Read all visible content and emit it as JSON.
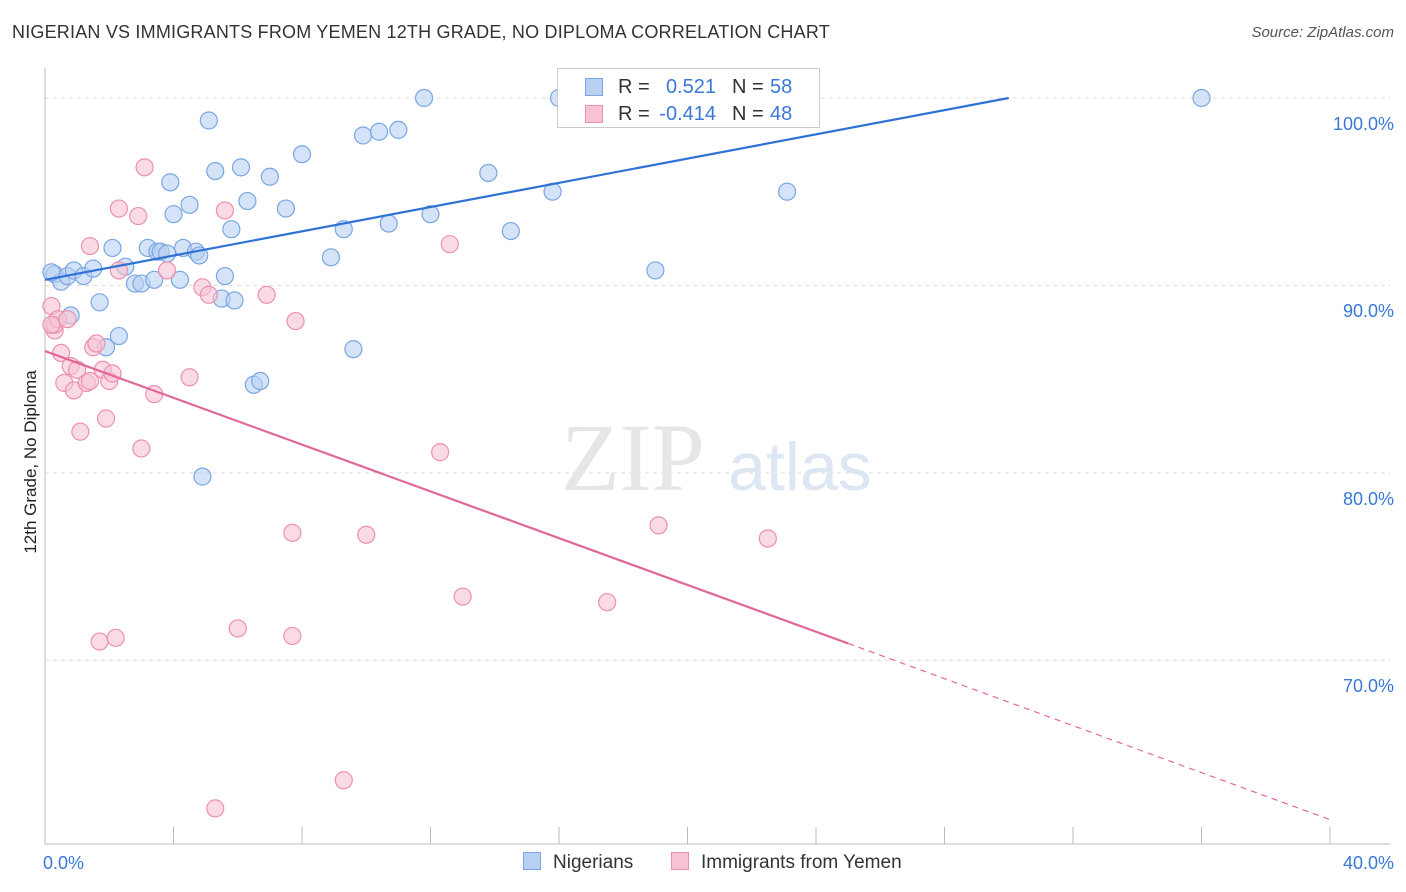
{
  "title": "NIGERIAN VS IMMIGRANTS FROM YEMEN 12TH GRADE, NO DIPLOMA CORRELATION CHART",
  "source": "Source: ZipAtlas.com",
  "watermark": {
    "zip": "ZIP",
    "atlas": "atlas"
  },
  "legend_top": {
    "rows": [
      {
        "r_label": "R =",
        "r_value": "0.521",
        "n_label": "N =",
        "n_value": "58",
        "fill": "#b8d0f2",
        "stroke": "#7aa6e3"
      },
      {
        "r_label": "R =",
        "r_value": "-0.414",
        "n_label": "N =",
        "n_value": "48",
        "fill": "#f7c3d3",
        "stroke": "#ec91ad"
      }
    ]
  },
  "legend_bottom": [
    {
      "label": "Nigerians",
      "fill": "#b8d0f2",
      "stroke": "#7aa6e3"
    },
    {
      "label": "Immigrants from Yemen",
      "fill": "#f7c3d3",
      "stroke": "#ec91ad"
    }
  ],
  "colors": {
    "blue_line": "#2f72d6",
    "pink_line": "#e0679a",
    "grid": "#dddddd",
    "axis_text": "#3a78d8"
  },
  "chart_data": {
    "type": "scatter",
    "title": "NIGERIAN VS IMMIGRANTS FROM YEMEN 12TH GRADE, NO DIPLOMA CORRELATION CHART",
    "xlabel": "",
    "ylabel": "12th Grade, No Diploma",
    "xlim": [
      0,
      40
    ],
    "ylim": [
      60.2,
      101.6
    ],
    "x_tick_labels": [
      "0.0%",
      "40.0%"
    ],
    "y_ticks": [
      {
        "value": 100,
        "label": "100.0%"
      },
      {
        "value": 90,
        "label": "90.0%"
      },
      {
        "value": 80,
        "label": "80.0%"
      },
      {
        "value": 70,
        "label": "70.0%"
      }
    ],
    "grid": true,
    "series": [
      {
        "name": "Nigerians",
        "color": "#b8d0f2",
        "edge": "#7aa6e3",
        "trend": {
          "x0": 0,
          "y0": 90.3,
          "x1": 30,
          "y1": 100.0,
          "dashed_to": null
        },
        "points": [
          [
            0.3,
            90.6
          ],
          [
            0.5,
            90.2
          ],
          [
            0.7,
            90.5
          ],
          [
            0.9,
            90.8
          ],
          [
            1.2,
            90.5
          ],
          [
            1.5,
            90.9
          ],
          [
            0.8,
            88.4
          ],
          [
            1.7,
            89.1
          ],
          [
            2.1,
            92.0
          ],
          [
            2.5,
            91.0
          ],
          [
            2.8,
            90.1
          ],
          [
            3.0,
            90.1
          ],
          [
            3.2,
            92.0
          ],
          [
            3.4,
            90.3
          ],
          [
            3.5,
            91.8
          ],
          [
            3.6,
            91.8
          ],
          [
            3.8,
            91.7
          ],
          [
            3.9,
            95.5
          ],
          [
            4.0,
            93.8
          ],
          [
            4.2,
            90.3
          ],
          [
            4.3,
            92.0
          ],
          [
            4.5,
            94.3
          ],
          [
            4.7,
            91.8
          ],
          [
            4.8,
            91.6
          ],
          [
            5.1,
            98.8
          ],
          [
            5.3,
            96.1
          ],
          [
            5.5,
            89.3
          ],
          [
            5.6,
            90.5
          ],
          [
            5.8,
            93.0
          ],
          [
            5.9,
            89.2
          ],
          [
            6.1,
            96.3
          ],
          [
            6.3,
            94.5
          ],
          [
            6.5,
            84.7
          ],
          [
            6.7,
            84.9
          ],
          [
            7.0,
            95.8
          ],
          [
            7.5,
            94.1
          ],
          [
            8.0,
            97.0
          ],
          [
            8.9,
            91.5
          ],
          [
            9.3,
            93.0
          ],
          [
            9.6,
            86.6
          ],
          [
            9.9,
            98.0
          ],
          [
            10.4,
            98.2
          ],
          [
            10.7,
            93.3
          ],
          [
            11.0,
            98.3
          ],
          [
            11.8,
            100.0
          ],
          [
            12.0,
            93.8
          ],
          [
            13.8,
            96.0
          ],
          [
            14.5,
            92.9
          ],
          [
            15.8,
            95.0
          ],
          [
            16.0,
            100.0
          ],
          [
            18.7,
            100.0
          ],
          [
            19.0,
            90.8
          ],
          [
            23.1,
            95.0
          ],
          [
            36.0,
            100.0
          ],
          [
            2.3,
            87.3
          ],
          [
            1.9,
            86.7
          ],
          [
            4.9,
            79.8
          ],
          [
            0.2,
            90.7
          ]
        ]
      },
      {
        "name": "Immigrants from Yemen",
        "color": "#f7c3d3",
        "edge": "#ec91ad",
        "trend": {
          "x0": 0,
          "y0": 86.5,
          "x1": 25,
          "y1": 70.9,
          "dashed_to": {
            "x": 40,
            "y": 61.5
          }
        },
        "points": [
          [
            0.2,
            88.9
          ],
          [
            0.3,
            87.6
          ],
          [
            0.3,
            87.9
          ],
          [
            0.4,
            88.2
          ],
          [
            0.5,
            86.4
          ],
          [
            0.6,
            84.8
          ],
          [
            0.7,
            88.2
          ],
          [
            0.8,
            85.7
          ],
          [
            0.9,
            84.4
          ],
          [
            1.0,
            85.5
          ],
          [
            1.1,
            82.2
          ],
          [
            1.3,
            84.8
          ],
          [
            1.4,
            92.1
          ],
          [
            1.5,
            86.7
          ],
          [
            1.6,
            86.9
          ],
          [
            1.7,
            71.0
          ],
          [
            1.8,
            85.5
          ],
          [
            1.9,
            82.9
          ],
          [
            2.0,
            84.9
          ],
          [
            2.1,
            85.3
          ],
          [
            2.2,
            71.2
          ],
          [
            2.3,
            90.8
          ],
          [
            2.3,
            94.1
          ],
          [
            2.9,
            93.7
          ],
          [
            3.0,
            81.3
          ],
          [
            3.1,
            96.3
          ],
          [
            3.4,
            84.2
          ],
          [
            3.8,
            90.8
          ],
          [
            4.5,
            85.1
          ],
          [
            4.9,
            89.9
          ],
          [
            5.1,
            89.5
          ],
          [
            5.3,
            62.1
          ],
          [
            5.6,
            94.0
          ],
          [
            6.0,
            71.7
          ],
          [
            6.9,
            89.5
          ],
          [
            7.7,
            71.3
          ],
          [
            7.7,
            76.8
          ],
          [
            7.8,
            88.1
          ],
          [
            9.3,
            63.6
          ],
          [
            10.0,
            76.7
          ],
          [
            12.3,
            81.1
          ],
          [
            12.6,
            92.2
          ],
          [
            13.0,
            73.4
          ],
          [
            17.5,
            73.1
          ],
          [
            19.1,
            77.2
          ],
          [
            22.5,
            76.5
          ],
          [
            0.2,
            87.9
          ],
          [
            1.4,
            84.9
          ]
        ]
      }
    ]
  }
}
